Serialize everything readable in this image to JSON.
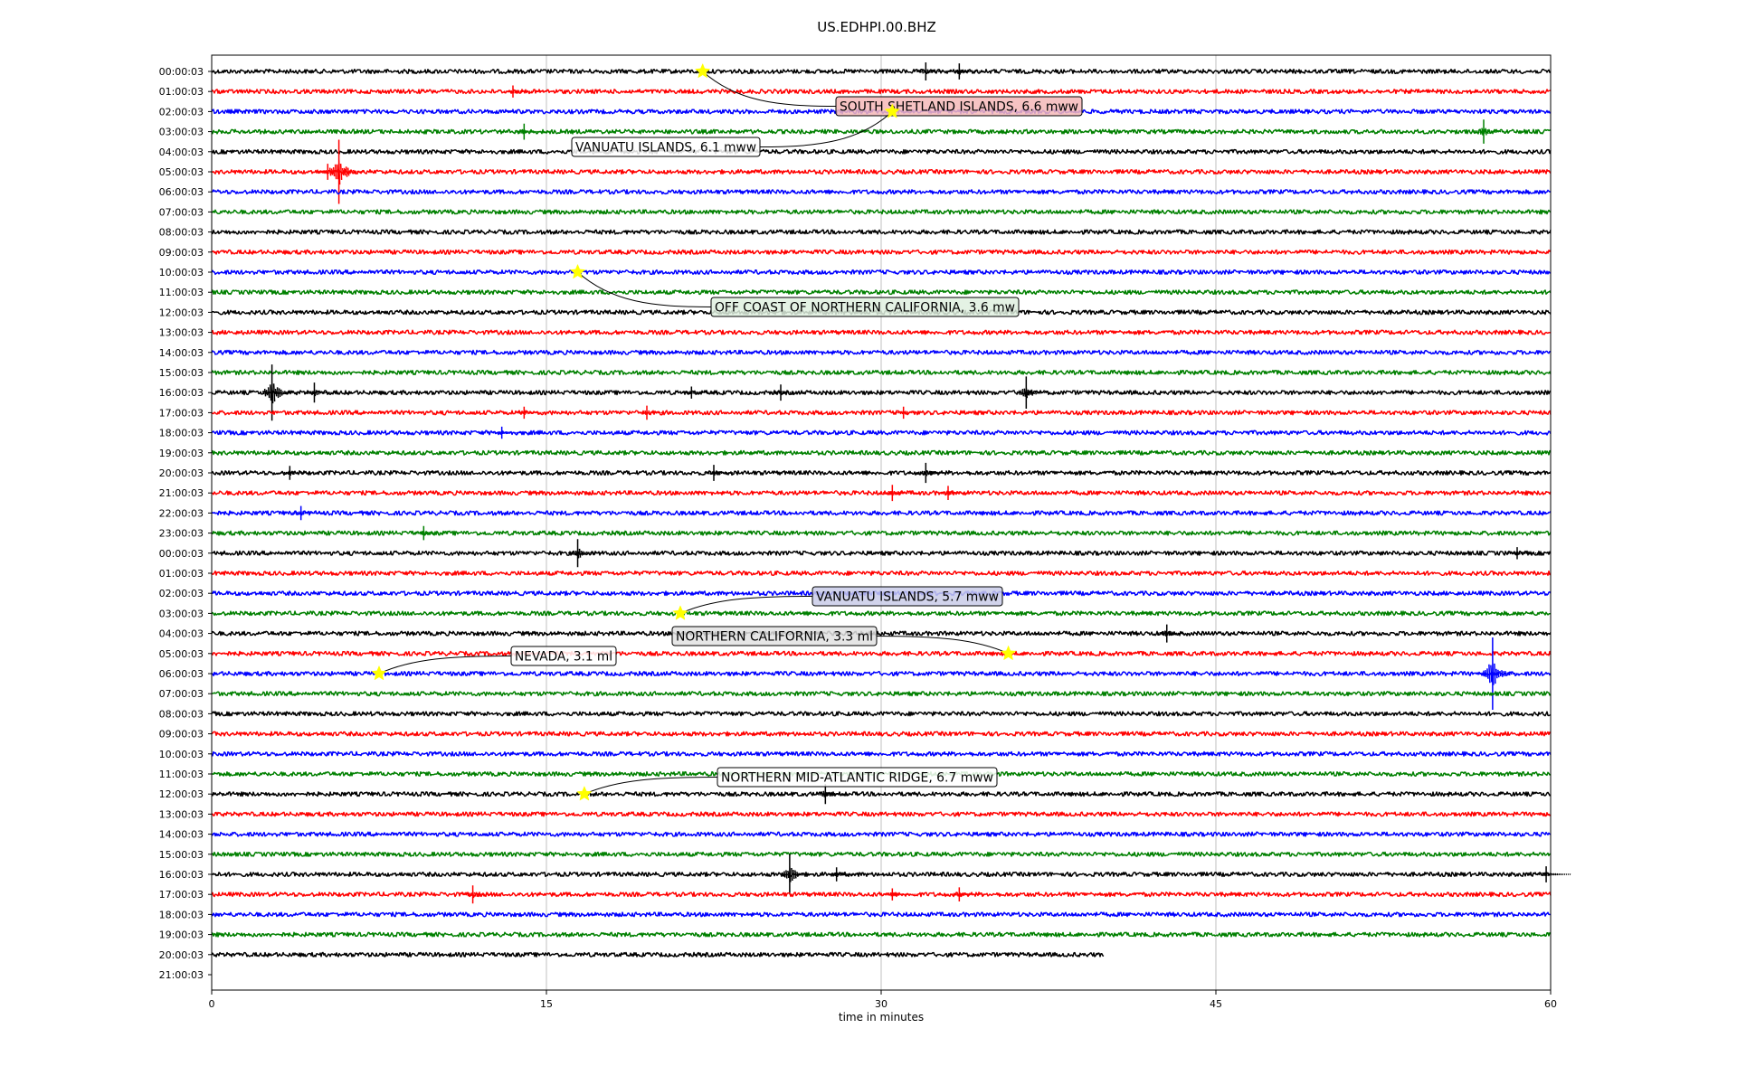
{
  "chart_data": {
    "type": "line",
    "title": "US.EDHPI.00.BHZ",
    "xlabel": "time in minutes",
    "ylabel": "",
    "xlim": [
      0,
      60
    ],
    "xticks": [
      "0",
      "15",
      "30",
      "45",
      "60"
    ],
    "row_labels": [
      "00:00:03",
      "01:00:03",
      "02:00:03",
      "03:00:03",
      "04:00:03",
      "05:00:03",
      "06:00:03",
      "07:00:03",
      "08:00:03",
      "09:00:03",
      "10:00:03",
      "11:00:03",
      "12:00:03",
      "13:00:03",
      "14:00:03",
      "15:00:03",
      "16:00:03",
      "17:00:03",
      "18:00:03",
      "19:00:03",
      "20:00:03",
      "21:00:03",
      "22:00:03",
      "23:00:03",
      "00:00:03",
      "01:00:03",
      "02:00:03",
      "03:00:03",
      "04:00:03",
      "05:00:03",
      "06:00:03",
      "07:00:03",
      "08:00:03",
      "09:00:03",
      "10:00:03",
      "11:00:03",
      "12:00:03",
      "13:00:03",
      "14:00:03",
      "15:00:03",
      "16:00:03",
      "17:00:03",
      "18:00:03",
      "19:00:03",
      "20:00:03",
      "21:00:03"
    ],
    "trace_colors": [
      "#000000",
      "#ff0000",
      "#0000ff",
      "#008000"
    ],
    "last_trace_end_minute": 40,
    "grid": true,
    "spikes": [
      {
        "row": 0,
        "minute": 32,
        "amp": 0.45
      },
      {
        "row": 0,
        "minute": 33.5,
        "amp": 0.4
      },
      {
        "row": 1,
        "minute": 13.5,
        "amp": 0.3
      },
      {
        "row": 3,
        "minute": 14,
        "amp": 0.4
      },
      {
        "row": 3,
        "minute": 57,
        "amp": 0.6
      },
      {
        "row": 5,
        "minute": 5.7,
        "amp": 1.6
      },
      {
        "row": 5,
        "minute": 5.2,
        "amp": 0.4
      },
      {
        "row": 16,
        "minute": 2.7,
        "amp": 1.4
      },
      {
        "row": 16,
        "minute": 4.6,
        "amp": 0.5
      },
      {
        "row": 16,
        "minute": 21.5,
        "amp": 0.3
      },
      {
        "row": 16,
        "minute": 25.5,
        "amp": 0.4
      },
      {
        "row": 16,
        "minute": 36.5,
        "amp": 0.8
      },
      {
        "row": 17,
        "minute": 14,
        "amp": 0.3
      },
      {
        "row": 17,
        "minute": 19.5,
        "amp": 0.35
      },
      {
        "row": 17,
        "minute": 31,
        "amp": 0.3
      },
      {
        "row": 18,
        "minute": 13,
        "amp": 0.3
      },
      {
        "row": 20,
        "minute": 3.5,
        "amp": 0.35
      },
      {
        "row": 20,
        "minute": 22.5,
        "amp": 0.4
      },
      {
        "row": 20,
        "minute": 32,
        "amp": 0.5
      },
      {
        "row": 21,
        "minute": 30.5,
        "amp": 0.4
      },
      {
        "row": 21,
        "minute": 33,
        "amp": 0.35
      },
      {
        "row": 22,
        "minute": 4,
        "amp": 0.35
      },
      {
        "row": 23,
        "minute": 9.5,
        "amp": 0.35
      },
      {
        "row": 24,
        "minute": 16.4,
        "amp": 0.7
      },
      {
        "row": 24,
        "minute": 58.5,
        "amp": 0.3
      },
      {
        "row": 28,
        "minute": 42.8,
        "amp": 0.45
      },
      {
        "row": 30,
        "minute": 57.4,
        "amp": 1.8
      },
      {
        "row": 36,
        "minute": 27.5,
        "amp": 0.5
      },
      {
        "row": 40,
        "minute": 25.9,
        "amp": 1.0
      },
      {
        "row": 40,
        "minute": 28,
        "amp": 0.35
      },
      {
        "row": 40,
        "minute": 59.8,
        "amp": 0.4
      },
      {
        "row": 41,
        "minute": 11.7,
        "amp": 0.45
      },
      {
        "row": 41,
        "minute": 33.5,
        "amp": 0.35
      },
      {
        "row": 41,
        "minute": 30.5,
        "amp": 0.3
      }
    ],
    "events": [
      {
        "label": "SOUTH SHETLAND ISLANDS, 6.6 mww",
        "row": 0,
        "minute": 22,
        "color": "#f4b8b8"
      },
      {
        "label": "VANUATU ISLANDS, 6.1 mww",
        "row": 2,
        "minute": 30.5,
        "color": "#ffffff"
      },
      {
        "label": "OFF COAST OF NORTHERN CALIFORNIA, 3.6 mw",
        "row": 10,
        "minute": 16.4,
        "color": "#dff0df"
      },
      {
        "label": "VANUATU ISLANDS, 5.7 mww",
        "row": 27,
        "minute": 21,
        "color": "#c9cbe8"
      },
      {
        "label": "NORTHERN CALIFORNIA, 3.3 ml",
        "row": 29,
        "minute": 35.7,
        "color": "#e2e2e2"
      },
      {
        "label": "NEVADA, 3.1 ml",
        "row": 30,
        "minute": 7.5,
        "color": "#ffffff"
      },
      {
        "label": "NORTHERN MID-ATLANTIC RIDGE, 6.7 mww",
        "row": 36,
        "minute": 16.7,
        "color": "#ffffff"
      }
    ]
  }
}
